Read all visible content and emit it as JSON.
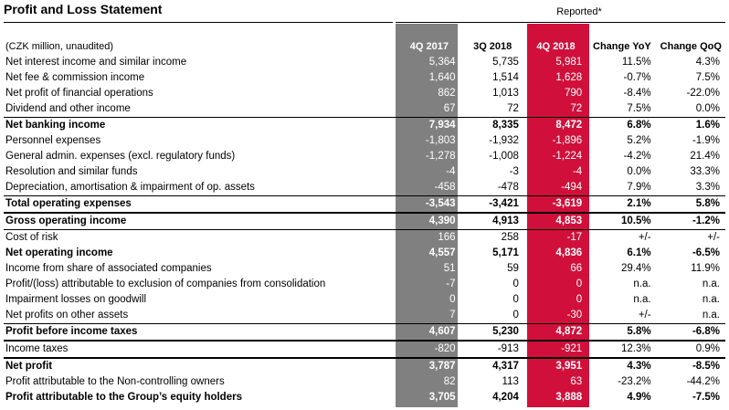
{
  "title": "Profit and Loss Statement",
  "reported_label": "Reported*",
  "units": "(CZK million, unaudited)",
  "columns": [
    "4Q 2017",
    "3Q 2018",
    "4Q 2018",
    "Change YoY",
    "Change QoQ"
  ],
  "colors": {
    "col_4q2017": "#808080",
    "col_4q2018": "#d0103a"
  },
  "rows": [
    {
      "label": "Net interest income and similar income",
      "v": [
        "5,364",
        "5,735",
        "5,981",
        "11.5%",
        "4.3%"
      ],
      "bold": false
    },
    {
      "label": "Net fee & commission income",
      "v": [
        "1,640",
        "1,514",
        "1,628",
        "-0.7%",
        "7.5%"
      ],
      "bold": false
    },
    {
      "label": "Net profit of financial operations",
      "v": [
        "862",
        "1,013",
        "790",
        "-8.4%",
        "-22.0%"
      ],
      "bold": false
    },
    {
      "label": "Dividend and other income",
      "v": [
        "67",
        "72",
        "72",
        "7.5%",
        "0.0%"
      ],
      "bold": false
    },
    {
      "label": "Net banking income",
      "v": [
        "7,934",
        "8,335",
        "8,472",
        "6.8%",
        "1.6%"
      ],
      "bold": true
    },
    {
      "label": "Personnel expenses",
      "v": [
        "-1,803",
        "-1,932",
        "-1,896",
        "5.2%",
        "-1.9%"
      ],
      "bold": false
    },
    {
      "label": "General admin. expenses (excl. regulatory funds)",
      "v": [
        "-1,278",
        "-1,008",
        "-1,224",
        "-4.2%",
        "21.4%"
      ],
      "bold": false
    },
    {
      "label": "Resolution and similar funds",
      "v": [
        "-4",
        "-3",
        "-4",
        "0.0%",
        "33.3%"
      ],
      "bold": false
    },
    {
      "label": "Depreciation, amortisation & impairment of op. assets",
      "v": [
        "-458",
        "-478",
        "-494",
        "7.9%",
        "3.3%"
      ],
      "bold": false
    },
    {
      "label": "Total operating expenses",
      "v": [
        "-3,543",
        "-3,421",
        "-3,619",
        "2.1%",
        "5.8%"
      ],
      "bold": true
    },
    {
      "label": "Gross operating income",
      "v": [
        "4,390",
        "4,913",
        "4,853",
        "10.5%",
        "-1.2%"
      ],
      "bold": true
    },
    {
      "label": "Cost of risk",
      "v": [
        "166",
        "258",
        "-17",
        "+/-",
        "+/-"
      ],
      "bold": false
    },
    {
      "label": "Net operating income",
      "v": [
        "4,557",
        "5,171",
        "4,836",
        "6.1%",
        "-6.5%"
      ],
      "bold": true
    },
    {
      "label": "Income from share of associated companies",
      "v": [
        "51",
        "59",
        "66",
        "29.4%",
        "11.9%"
      ],
      "bold": false
    },
    {
      "label": "Profit/(loss) attributable to exclusion of companies from consolidation",
      "v": [
        "-7",
        "0",
        "0",
        "n.a.",
        "n.a."
      ],
      "bold": false
    },
    {
      "label": "Impairment losses on goodwill",
      "v": [
        "0",
        "0",
        "0",
        "n.a.",
        "n.a."
      ],
      "bold": false
    },
    {
      "label": "Net profits on other assets",
      "v": [
        "7",
        "0",
        "-30",
        "+/-",
        "n.a."
      ],
      "bold": false
    },
    {
      "label": "Profit before income taxes",
      "v": [
        "4,607",
        "5,230",
        "4,872",
        "5.8%",
        "-6.8%"
      ],
      "bold": true
    },
    {
      "label": "Income taxes",
      "v": [
        "-820",
        "-913",
        "-921",
        "12.3%",
        "0.9%"
      ],
      "bold": false
    },
    {
      "label": "Net profit",
      "v": [
        "3,787",
        "4,317",
        "3,951",
        "4.3%",
        "-8.5%"
      ],
      "bold": true
    },
    {
      "label": "Profit attributable to the Non-controlling owners",
      "v": [
        "82",
        "113",
        "63",
        "-23.2%",
        "-44.2%"
      ],
      "bold": false
    },
    {
      "label": "Profit attributable to the Group’s equity holders",
      "v": [
        "3,705",
        "4,204",
        "3,888",
        "4.9%",
        "-7.5%"
      ],
      "bold": true
    }
  ]
}
